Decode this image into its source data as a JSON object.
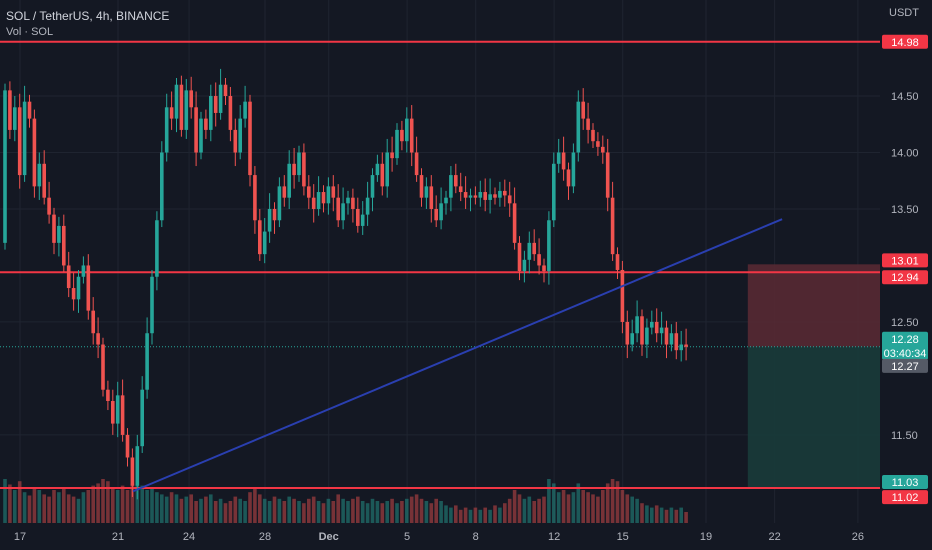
{
  "legend": {
    "symbol": "SOL / TetherUS, 4h, BINANCE",
    "volume": "Vol · SOL"
  },
  "colors": {
    "background": "#141823",
    "grid": "#1f2430",
    "up": "#26a69a",
    "down": "#ef5350",
    "hline": "#f23645",
    "trendline": "#2a3fb0",
    "stop_zone": "#5b2a34",
    "target_zone": "#183b3a",
    "current_price": "#26a69a",
    "axis_text": "#b2b5be"
  },
  "chart_data": {
    "type": "candlestick",
    "symbol": "SOL / TetherUS",
    "timeframe": "4h",
    "exchange": "BINANCE",
    "currency": "USDT",
    "volume_label": "Vol · SOL",
    "y_range": [
      10.72,
      15.35
    ],
    "y_ticks": [
      "14.50",
      "14.00",
      "13.50",
      "12.50",
      "11.50"
    ],
    "x_ticks": [
      "17",
      "21",
      "24",
      "28",
      "Dec",
      "5",
      "8",
      "12",
      "15",
      "19",
      "22",
      "26"
    ],
    "horizontal_levels": [
      14.98,
      12.94,
      11.03
    ],
    "price_tags": [
      {
        "label": "14.98",
        "value": 14.98,
        "color": "#f23645"
      },
      {
        "label": "13.01",
        "value": 13.01,
        "color": "#f23645"
      },
      {
        "label": "12.94",
        "value": 12.94,
        "color": "#f23645"
      },
      {
        "label": "12.28",
        "value": 12.28,
        "color": "#26a69a",
        "extra": "03:40:34"
      },
      {
        "label": "12.27",
        "value": 12.27,
        "color": "#555a66"
      },
      {
        "label": "11.03",
        "value": 11.03,
        "color": "#26a69a"
      },
      {
        "label": "11.02",
        "value": 11.02,
        "color": "#f23645"
      }
    ],
    "trendline": {
      "start_index": 26.5,
      "start_price": 11.0,
      "end_index": 159,
      "end_price": 13.41
    },
    "position": {
      "entry": 12.28,
      "stop": 13.01,
      "target": 11.03,
      "start_index": 152,
      "end_index": 184
    },
    "current_price": 12.28,
    "countdown": "03:40:34",
    "candles_start": 13.2,
    "closes": [
      14.55,
      14.2,
      14.4,
      13.8,
      14.45,
      14.3,
      13.7,
      13.9,
      13.6,
      13.45,
      13.2,
      13.35,
      13.0,
      12.8,
      12.7,
      12.9,
      13.0,
      12.6,
      12.4,
      12.3,
      11.9,
      11.8,
      11.6,
      11.85,
      11.5,
      11.3,
      11.05,
      11.4,
      11.9,
      12.4,
      12.9,
      13.4,
      14.0,
      14.4,
      14.3,
      14.6,
      14.2,
      14.55,
      14.4,
      14.0,
      14.3,
      14.2,
      14.5,
      14.35,
      14.6,
      14.5,
      14.2,
      14.0,
      14.3,
      14.45,
      13.8,
      13.4,
      13.1,
      13.3,
      13.5,
      13.4,
      13.7,
      13.6,
      13.9,
      13.8,
      14.0,
      13.7,
      13.6,
      13.5,
      13.65,
      13.55,
      13.7,
      13.6,
      13.4,
      13.55,
      13.6,
      13.5,
      13.35,
      13.45,
      13.6,
      13.8,
      13.9,
      13.7,
      14.0,
      13.95,
      14.2,
      14.1,
      14.3,
      14.0,
      13.8,
      13.6,
      13.7,
      13.5,
      13.4,
      13.55,
      13.6,
      13.8,
      13.7,
      13.65,
      13.6,
      13.62,
      13.6,
      13.65,
      13.58,
      13.63,
      13.6,
      13.66,
      13.62,
      13.55,
      13.2,
      12.95,
      13.05,
      13.2,
      13.1,
      13.0,
      12.95,
      13.4,
      13.9,
      14.0,
      13.85,
      13.7,
      14.0,
      14.45,
      14.3,
      14.2,
      14.1,
      14.05,
      14.0,
      13.6,
      13.1,
      12.96,
      12.5,
      12.3,
      12.4,
      12.55,
      12.3,
      12.45,
      12.5,
      12.4,
      12.45,
      12.3,
      12.4,
      12.25,
      12.3,
      12.28
    ],
    "volumes": [
      40,
      35,
      30,
      38,
      28,
      25,
      32,
      30,
      26,
      24,
      30,
      28,
      32,
      26,
      24,
      22,
      28,
      30,
      34,
      36,
      40,
      38,
      32,
      30,
      34,
      30,
      36,
      38,
      34,
      30,
      32,
      28,
      26,
      24,
      28,
      26,
      22,
      24,
      26,
      20,
      22,
      24,
      26,
      20,
      22,
      18,
      20,
      24,
      22,
      20,
      28,
      32,
      26,
      22,
      20,
      24,
      22,
      20,
      24,
      22,
      20,
      18,
      22,
      24,
      20,
      18,
      22,
      20,
      26,
      22,
      20,
      22,
      24,
      20,
      18,
      22,
      20,
      18,
      20,
      22,
      18,
      20,
      22,
      24,
      26,
      22,
      20,
      18,
      22,
      20,
      16,
      14,
      16,
      12,
      14,
      12,
      14,
      12,
      14,
      12,
      16,
      14,
      18,
      22,
      30,
      26,
      22,
      24,
      20,
      22,
      24,
      40,
      36,
      28,
      30,
      26,
      28,
      36,
      30,
      28,
      26,
      24,
      30,
      36,
      40,
      38,
      30,
      26,
      24,
      22,
      18,
      16,
      14,
      16,
      14,
      12,
      14,
      12,
      14,
      10
    ]
  }
}
